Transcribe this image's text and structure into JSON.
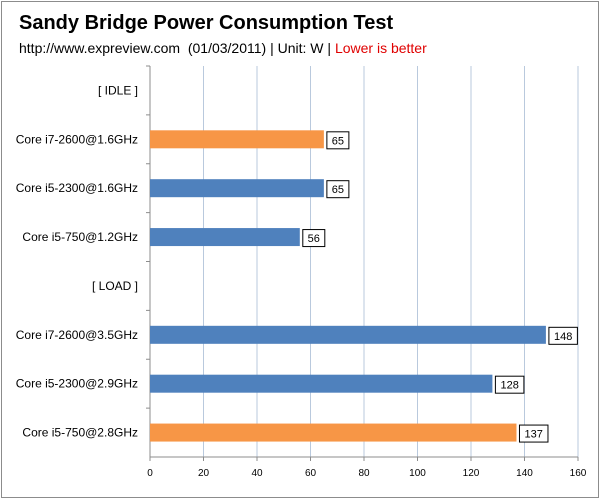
{
  "chart_data": {
    "type": "bar",
    "orientation": "horizontal",
    "title": "Sandy Bridge Power Consumption Test",
    "subtitle": {
      "source": "http://www.expreview.com",
      "date": "(01/03/2011)",
      "unit": "Unit: W",
      "note": "Lower is better"
    },
    "categories": [
      "[ IDLE ]",
      "Core i7-2600@1.6GHz",
      "Core i5-2300@1.6GHz",
      "Core i5-750@1.2GHz",
      "[ LOAD ]",
      "Core i7-2600@3.5GHz",
      "Core i5-2300@2.9GHz",
      "Core i5-750@2.8GHz"
    ],
    "values": [
      null,
      65,
      65,
      56,
      null,
      148,
      128,
      137
    ],
    "bar_colors": [
      null,
      "#f79646",
      "#4f81bd",
      "#4f81bd",
      null,
      "#4f81bd",
      "#4f81bd",
      "#f79646"
    ],
    "xlim": [
      0,
      160
    ],
    "xticks": [
      0,
      20,
      40,
      60,
      80,
      100,
      120,
      140,
      160
    ],
    "grid": true,
    "legend": "none",
    "colors": {
      "blue": "#4f81bd",
      "orange": "#f79646",
      "grid": "#b9c9dd",
      "note": "#e00000"
    }
  }
}
